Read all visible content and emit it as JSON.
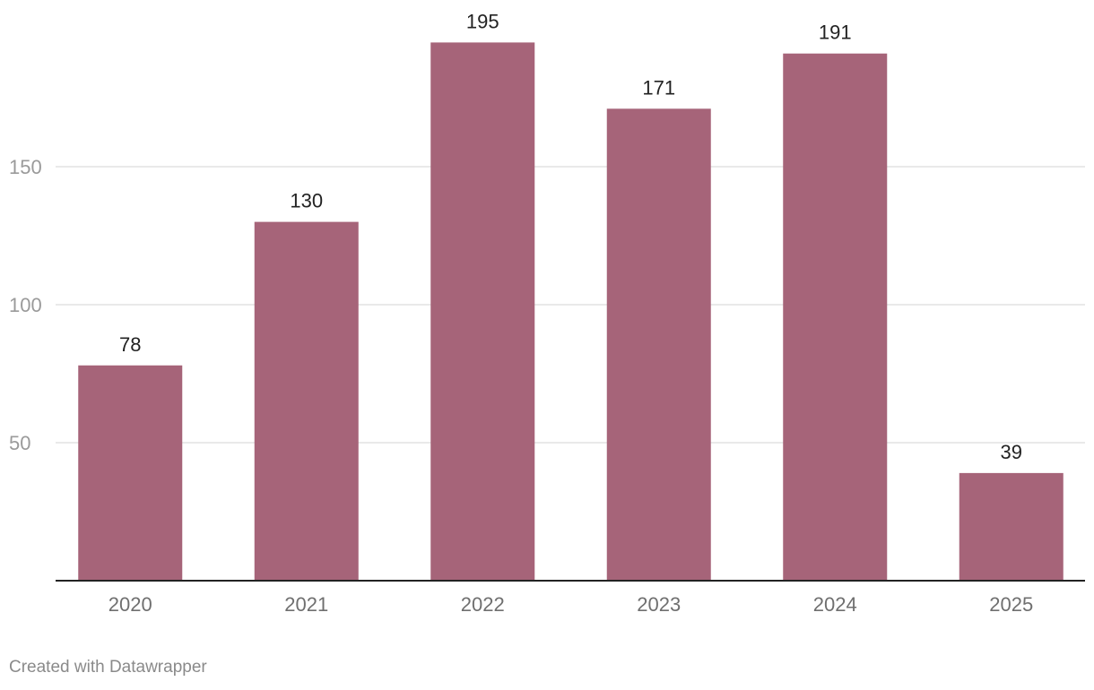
{
  "chart_data": {
    "type": "bar",
    "categories": [
      "2020",
      "2021",
      "2022",
      "2023",
      "2024",
      "2025"
    ],
    "values": [
      78,
      130,
      195,
      171,
      191,
      39
    ],
    "yticks": [
      50,
      100,
      150
    ],
    "ylim": [
      0,
      195
    ],
    "grid": true,
    "data_labels": true,
    "bar_color": "#a66479"
  },
  "credit": "Created with Datawrapper"
}
